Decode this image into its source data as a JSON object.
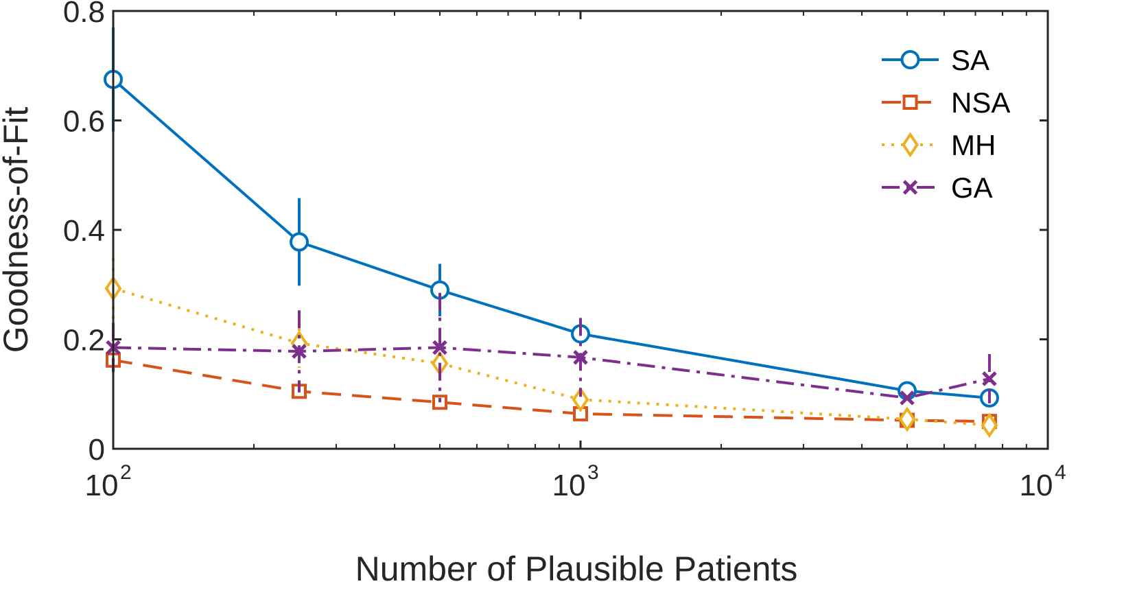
{
  "chart_data": {
    "type": "line",
    "xlabel": "Number of Plausible Patients",
    "ylabel": "Goodness-of-Fit",
    "xscale": "log",
    "xlim": [
      100,
      10000
    ],
    "ylim": [
      0,
      0.8
    ],
    "xticks": [
      {
        "value": 100,
        "base": "10",
        "exp": "2"
      },
      {
        "value": 1000,
        "base": "10",
        "exp": "3"
      },
      {
        "value": 10000,
        "base": "10",
        "exp": "4"
      }
    ],
    "yticks": [
      {
        "value": 0,
        "label": "0"
      },
      {
        "value": 0.2,
        "label": "0.2"
      },
      {
        "value": 0.4,
        "label": "0.4"
      },
      {
        "value": 0.6,
        "label": "0.6"
      },
      {
        "value": 0.8,
        "label": "0.8"
      }
    ],
    "grid": false,
    "legend_position": "top-right",
    "series": [
      {
        "name": "SA",
        "color": "#0072BD",
        "line_style": "solid",
        "marker": "circle",
        "x": [
          100,
          250,
          500,
          1000,
          5000,
          7500
        ],
        "y": [
          0.675,
          0.378,
          0.29,
          0.21,
          0.106,
          0.093
        ],
        "err": [
          0.095,
          0.08,
          0.048,
          0.0,
          0.0,
          0.0
        ]
      },
      {
        "name": "NSA",
        "color": "#D95319",
        "line_style": "dashed",
        "marker": "square",
        "x": [
          100,
          250,
          500,
          1000,
          5000,
          7500
        ],
        "y": [
          0.162,
          0.105,
          0.085,
          0.064,
          0.052,
          0.05
        ],
        "err": [
          0.0,
          0.0,
          0.0,
          0.0,
          0.0,
          0.0
        ]
      },
      {
        "name": "MH",
        "color": "#EDB120",
        "line_style": "dotted",
        "marker": "diamond",
        "x": [
          100,
          250,
          500,
          1000,
          5000,
          7500
        ],
        "y": [
          0.293,
          0.193,
          0.156,
          0.09,
          0.054,
          0.043
        ],
        "err": [
          0.055,
          0.045,
          0.0,
          0.0,
          0.0,
          0.0
        ]
      },
      {
        "name": "GA",
        "color": "#7E2F8E",
        "line_style": "dash-dot",
        "marker": "x",
        "x": [
          100,
          250,
          500,
          1000,
          5000,
          7500
        ],
        "y": [
          0.185,
          0.178,
          0.185,
          0.167,
          0.093,
          0.128
        ],
        "err": [
          0.045,
          0.075,
          0.1,
          0.072,
          0.0,
          0.045
        ]
      }
    ]
  }
}
